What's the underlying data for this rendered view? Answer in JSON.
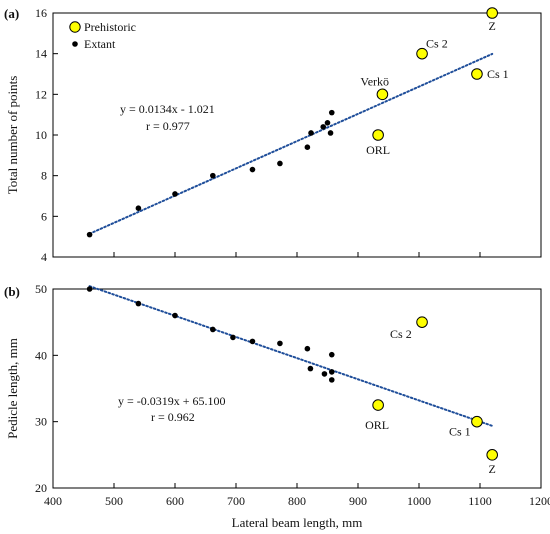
{
  "chart_data": [
    {
      "type": "scatter",
      "panel": "(a)",
      "ylabel": "Total number of points",
      "xlim": [
        400,
        1200
      ],
      "ylim": [
        4,
        16
      ],
      "yticks": [
        4,
        6,
        8,
        10,
        12,
        14,
        16
      ],
      "xticks": [
        400,
        500,
        600,
        700,
        800,
        900,
        1000,
        1100,
        1200
      ],
      "legend": {
        "placement": "top-left",
        "entries": [
          {
            "label": "Prehistoric",
            "marker": "yellow-circle"
          },
          {
            "label": "Extant",
            "marker": "black-dot"
          }
        ]
      },
      "series": [
        {
          "name": "Prehistoric",
          "color": "#ffff00",
          "points": [
            {
              "x": 940,
              "y": 12,
              "label": "Verkö"
            },
            {
              "x": 1005,
              "y": 14,
              "label": "Cs 2"
            },
            {
              "x": 1095,
              "y": 13,
              "label": "Cs 1"
            },
            {
              "x": 1120,
              "y": 16,
              "label": "Z"
            },
            {
              "x": 933,
              "y": 10,
              "label": "ORL"
            }
          ]
        },
        {
          "name": "Extant",
          "color": "#000000",
          "points": [
            {
              "x": 460,
              "y": 5.1
            },
            {
              "x": 540,
              "y": 6.4
            },
            {
              "x": 600,
              "y": 7.1
            },
            {
              "x": 662,
              "y": 8.0
            },
            {
              "x": 727,
              "y": 8.3
            },
            {
              "x": 772,
              "y": 8.6
            },
            {
              "x": 817,
              "y": 9.4
            },
            {
              "x": 823,
              "y": 10.1
            },
            {
              "x": 843,
              "y": 10.4
            },
            {
              "x": 850,
              "y": 10.6
            },
            {
              "x": 855,
              "y": 10.1
            },
            {
              "x": 857,
              "y": 11.1
            }
          ]
        }
      ],
      "trendline": {
        "slope": 0.0134,
        "intercept": -1.021,
        "x_range": [
          460,
          1120
        ],
        "color": "#1f4e9a"
      },
      "equation": {
        "line1": "y = 0.0134x - 1.021",
        "line2": "r = 0.977"
      }
    },
    {
      "type": "scatter",
      "panel": "(b)",
      "xlabel": "Lateral beam length, mm",
      "ylabel": "Pedicle length, mm",
      "xlim": [
        400,
        1200
      ],
      "ylim": [
        20,
        50
      ],
      "yticks": [
        20,
        30,
        40,
        50
      ],
      "xticks": [
        400,
        500,
        600,
        700,
        800,
        900,
        1000,
        1100,
        1200
      ],
      "series": [
        {
          "name": "Prehistoric",
          "color": "#ffff00",
          "points": [
            {
              "x": 1005,
              "y": 45,
              "label": "Cs 2"
            },
            {
              "x": 933,
              "y": 32.5,
              "label": "ORL"
            },
            {
              "x": 1095,
              "y": 30,
              "label": "Cs 1"
            },
            {
              "x": 1120,
              "y": 25,
              "label": "Z"
            }
          ]
        },
        {
          "name": "Extant",
          "color": "#000000",
          "points": [
            {
              "x": 460,
              "y": 50
            },
            {
              "x": 540,
              "y": 47.8
            },
            {
              "x": 600,
              "y": 46.0
            },
            {
              "x": 662,
              "y": 43.9
            },
            {
              "x": 695,
              "y": 42.7
            },
            {
              "x": 727,
              "y": 42.1
            },
            {
              "x": 772,
              "y": 41.8
            },
            {
              "x": 817,
              "y": 41.0
            },
            {
              "x": 822,
              "y": 38.0
            },
            {
              "x": 845,
              "y": 37.2
            },
            {
              "x": 857,
              "y": 40.1
            },
            {
              "x": 857,
              "y": 37.5
            },
            {
              "x": 857,
              "y": 36.3
            }
          ]
        }
      ],
      "trendline": {
        "slope": -0.0319,
        "intercept": 65.1,
        "x_range": [
          460,
          1120
        ],
        "color": "#1f4e9a"
      },
      "equation": {
        "line1": "y = -0.0319x + 65.100",
        "line2": "r = 0.962"
      }
    }
  ]
}
